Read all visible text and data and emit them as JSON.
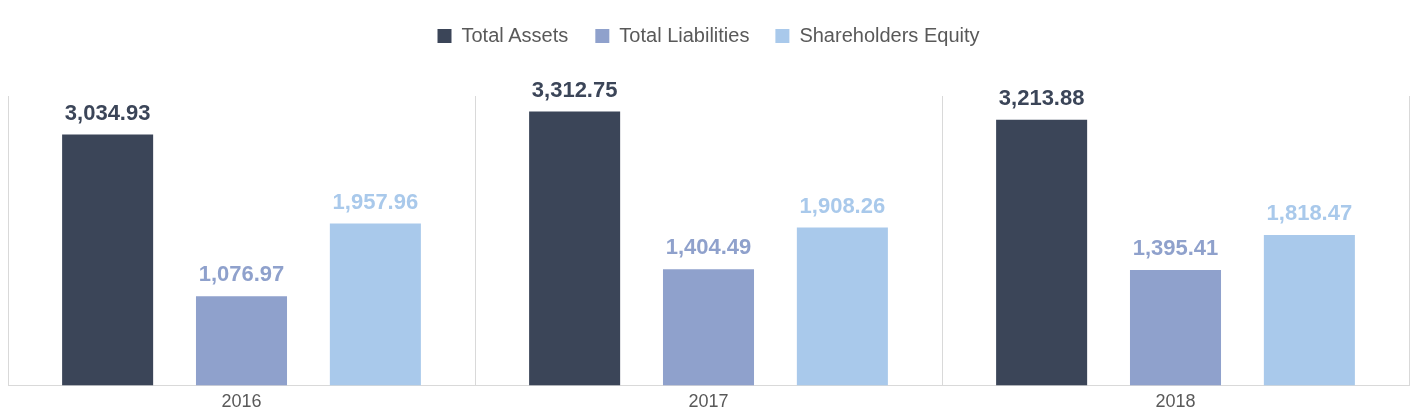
{
  "chart_data": {
    "type": "bar",
    "categories": [
      "2016",
      "2017",
      "2018"
    ],
    "series": [
      {
        "name": "Total Assets",
        "color": "#3b4558",
        "values": [
          3034.93,
          3312.75,
          3213.88
        ],
        "value_labels": [
          "3,034.93",
          "3,312.75",
          "3,213.88"
        ]
      },
      {
        "name": "Total Liabilities",
        "color": "#8fa1cc",
        "values": [
          1076.97,
          1404.49,
          1395.41
        ],
        "value_labels": [
          "1,076.97",
          "1,404.49",
          "1,395.41"
        ]
      },
      {
        "name": "Shareholders Equity",
        "color": "#a9c9eb",
        "values": [
          1957.96,
          1908.26,
          1818.47
        ],
        "value_labels": [
          "1,957.96",
          "1,908.26",
          "1,818.47"
        ]
      }
    ],
    "legend": "top",
    "grid": "x"
  }
}
